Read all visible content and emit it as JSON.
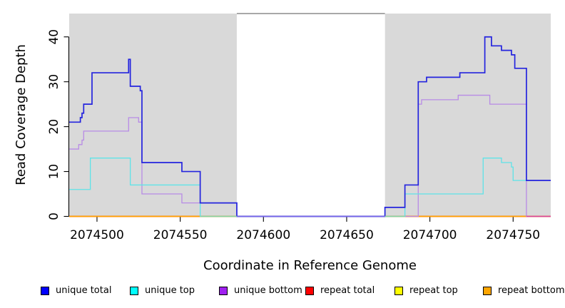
{
  "chart_data": {
    "type": "line",
    "subtype": "step-coverage",
    "title": "",
    "xlabel": "Coordinate in Reference Genome",
    "ylabel": "Read Coverage Depth",
    "xlim": [
      2074483.3,
      2074772.6
    ],
    "ylim": [
      0,
      45.2
    ],
    "x_ticks": [
      2074500,
      2074550,
      2074600,
      2074650,
      2074700,
      2074750
    ],
    "y_ticks": [
      0,
      10,
      20,
      30,
      40
    ],
    "grid": false,
    "panel_color": "#D9D9D9",
    "shaded_regions": [
      {
        "from": 2074483.3,
        "to": 2074584
      },
      {
        "from": 2074673,
        "to": 2074772.6
      }
    ],
    "masked_region": {
      "from": 2074584,
      "to": 2074673,
      "fill": "#FFFFFF",
      "top_border": "#8C8C8C"
    },
    "series": [
      {
        "name": "repeat top",
        "color": "#FFFF00",
        "width": 1.4,
        "steps": [
          [
            2074483.3,
            0
          ]
        ],
        "end": 2074772.6
      },
      {
        "name": "repeat total",
        "color": "#FF0000",
        "width": 1.4,
        "steps": [
          [
            2074483.3,
            0
          ]
        ],
        "end": 2074772.6
      },
      {
        "name": "repeat bottom",
        "color": "#FFA500",
        "width": 1.6,
        "steps": [
          [
            2074483.3,
            0
          ]
        ],
        "end": 2074772.6
      },
      {
        "name": "unique bottom",
        "color": "#B88BE6",
        "width": 1.3,
        "steps": [
          [
            2074483.3,
            15
          ],
          [
            2074489,
            16
          ],
          [
            2074491,
            17
          ],
          [
            2074492,
            19
          ],
          [
            2074519,
            22
          ],
          [
            2074525,
            21
          ],
          [
            2074527,
            5
          ],
          [
            2074551,
            3
          ],
          [
            2074584,
            0
          ],
          [
            2074693,
            25
          ],
          [
            2074695,
            26
          ],
          [
            2074717,
            27
          ],
          [
            2074736,
            25
          ],
          [
            2074758,
            0
          ]
        ],
        "end": 2074772.6
      },
      {
        "name": "unique top",
        "color": "#5FE3E8",
        "width": 1.3,
        "steps": [
          [
            2074483.3,
            6
          ],
          [
            2074496,
            13
          ],
          [
            2074520,
            7
          ],
          [
            2074562,
            0
          ],
          [
            2074685,
            5
          ],
          [
            2074732,
            13
          ],
          [
            2074743,
            12
          ],
          [
            2074749,
            11
          ],
          [
            2074750,
            8
          ]
        ],
        "end": 2074772.6
      },
      {
        "name": "unique total",
        "color": "#2424DE",
        "width": 1.7,
        "steps": [
          [
            2074483.3,
            21
          ],
          [
            2074490,
            22
          ],
          [
            2074491,
            23
          ],
          [
            2074492,
            25
          ],
          [
            2074497,
            32
          ],
          [
            2074519,
            35
          ],
          [
            2074520,
            29
          ],
          [
            2074526,
            28
          ],
          [
            2074527,
            12
          ],
          [
            2074551,
            10
          ],
          [
            2074562,
            3
          ],
          [
            2074584,
            0
          ],
          [
            2074673,
            2
          ],
          [
            2074685,
            7
          ],
          [
            2074693,
            30
          ],
          [
            2074698,
            31
          ],
          [
            2074718,
            32
          ],
          [
            2074733,
            40
          ],
          [
            2074737,
            38
          ],
          [
            2074743,
            37
          ],
          [
            2074749,
            36
          ],
          [
            2074751,
            33
          ],
          [
            2074758,
            8
          ]
        ],
        "end": 2074772.6
      }
    ],
    "baseline_overlap_segments": [
      {
        "from": 2074562,
        "to": 2074584,
        "color": "#86D5A5"
      },
      {
        "from": 2074584,
        "to": 2074673,
        "color": "#7667EC"
      },
      {
        "from": 2074673,
        "to": 2074685,
        "color": "#86D5A5"
      },
      {
        "from": 2074758,
        "to": 2074772.6,
        "color": "#D8459C"
      }
    ],
    "legend": [
      {
        "label": "unique total",
        "color": "#0000FF"
      },
      {
        "label": "unique top",
        "color": "#00FFFF"
      },
      {
        "label": "unique bottom",
        "color": "#A020F0"
      },
      {
        "label": "repeat total",
        "color": "#FF0000"
      },
      {
        "label": "repeat top",
        "color": "#FFFF00"
      },
      {
        "label": "repeat bottom",
        "color": "#FFA500"
      }
    ]
  }
}
